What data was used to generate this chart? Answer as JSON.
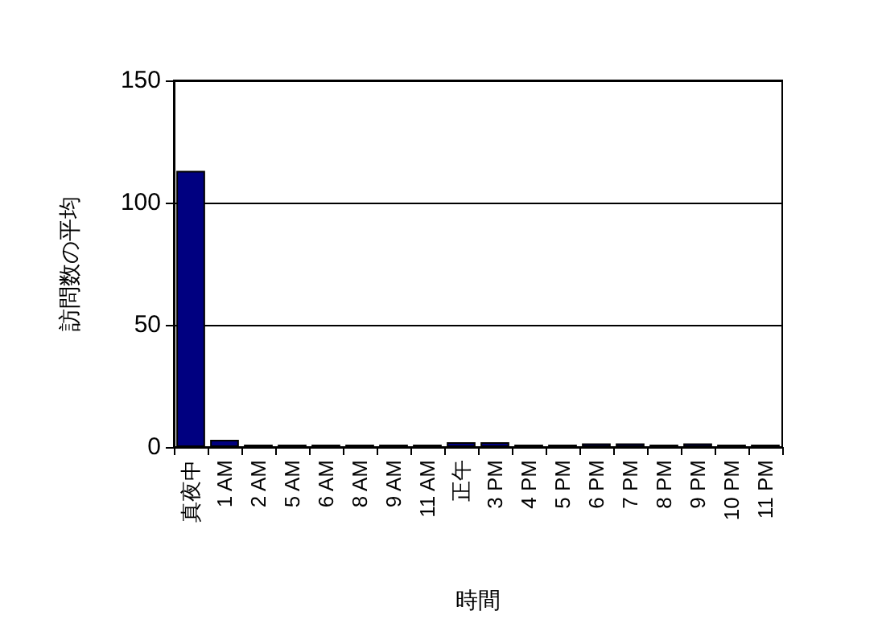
{
  "chart_data": {
    "type": "bar",
    "xlabel": "時間",
    "ylabel": "訪問数の平均",
    "categories": [
      "真夜中",
      "1 AM",
      "2 AM",
      "5 AM",
      "6 AM",
      "8 AM",
      "9 AM",
      "11 AM",
      "正午",
      "3 PM",
      "4 PM",
      "5 PM",
      "6 PM",
      "7 PM",
      "8 PM",
      "9 PM",
      "10 PM",
      "11 PM"
    ],
    "values": [
      113,
      3,
      1,
      1,
      1,
      1,
      1,
      1,
      2,
      2,
      1,
      1,
      1.5,
      1.5,
      1,
      1.5,
      1,
      1
    ],
    "color": "#000080",
    "ylim": [
      0,
      150
    ],
    "yticks": [
      0,
      50,
      100,
      150
    ],
    "grid": "y"
  }
}
